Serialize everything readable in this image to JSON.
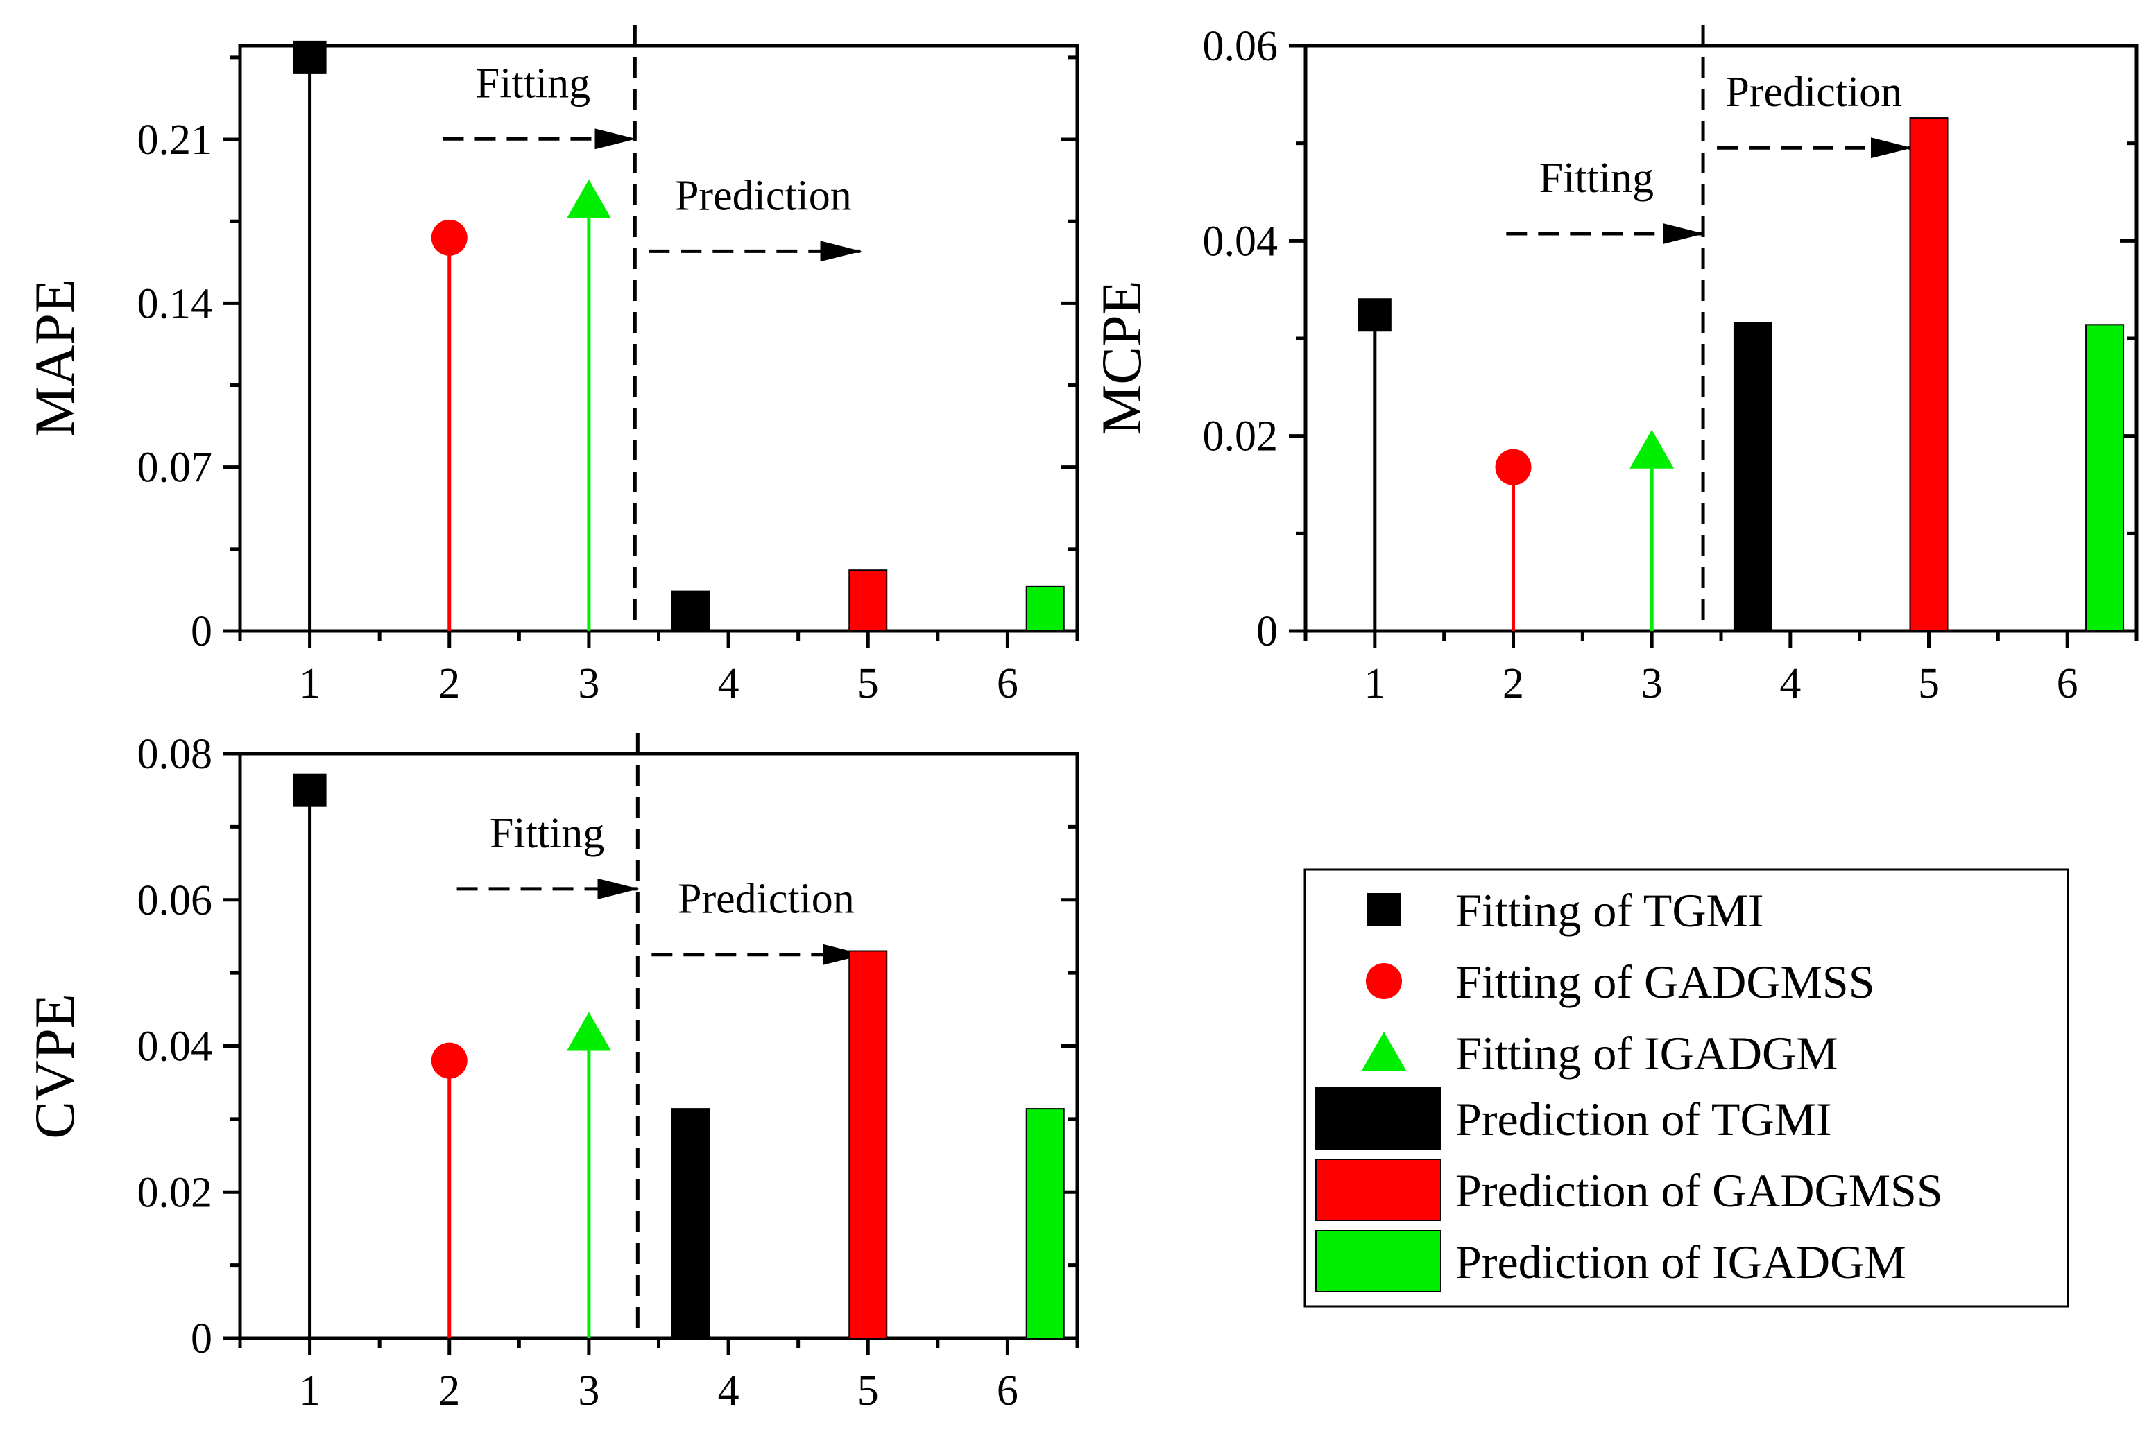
{
  "colors": {
    "TGMI": "#000000",
    "GADGMSS": "#ff0000",
    "IGADGM": "#00ee00"
  },
  "legend": {
    "items": [
      {
        "label": "Fitting of TGMI",
        "marker": "square",
        "color": "#000000"
      },
      {
        "label": "Fitting of GADGMSS",
        "marker": "circle",
        "color": "#ff0000"
      },
      {
        "label": "Fitting of IGADGM",
        "marker": "triangle",
        "color": "#00ee00"
      },
      {
        "label": "Prediction of TGMI",
        "marker": "bar",
        "color": "#000000"
      },
      {
        "label": "Prediction of GADGMSS",
        "marker": "bar",
        "color": "#ff0000"
      },
      {
        "label": "Prediction of IGADGM",
        "marker": "bar",
        "color": "#00ee00"
      }
    ]
  },
  "chart_data": [
    {
      "type": "bar",
      "ylabel": "MAPE",
      "xlabel": "",
      "xlim": [
        0.5,
        6.5
      ],
      "ylim": [
        0,
        0.25
      ],
      "yticks": [
        0,
        0.07,
        0.14,
        0.21
      ],
      "ytick_labels": [
        "0",
        "0.07",
        "0.14",
        "0.21"
      ],
      "xticks": [
        1,
        2,
        3,
        4,
        5,
        6
      ],
      "xtick_labels": [
        "1",
        "2",
        "3",
        "4",
        "5",
        "6"
      ],
      "divider_x": 3.33,
      "annotations": [
        {
          "text": "Fitting",
          "x": 2.6,
          "y": 0.228
        },
        {
          "text": "Prediction",
          "x": 4.25,
          "y": 0.18
        }
      ],
      "fitting": [
        {
          "series": "TGMI",
          "x": 1,
          "value": 0.245,
          "marker": "square"
        },
        {
          "series": "GADGMSS",
          "x": 2,
          "value": 0.168,
          "marker": "circle"
        },
        {
          "series": "IGADGM",
          "x": 3,
          "value": 0.184,
          "marker": "triangle"
        }
      ],
      "prediction": [
        {
          "series": "TGMI",
          "x": 3.73,
          "value": 0.017
        },
        {
          "series": "GADGMSS",
          "x": 5,
          "value": 0.026
        },
        {
          "series": "IGADGM",
          "x": 6.27,
          "value": 0.019
        }
      ]
    },
    {
      "type": "bar",
      "ylabel": "MCPE",
      "xlabel": "",
      "xlim": [
        0.5,
        6.5
      ],
      "ylim": [
        0,
        0.06
      ],
      "yticks": [
        0,
        0.02,
        0.04,
        0.06
      ],
      "ytick_labels": [
        "0",
        "0.02",
        "0.04",
        "0.06"
      ],
      "xticks": [
        1,
        2,
        3,
        4,
        5,
        6
      ],
      "xtick_labels": [
        "1",
        "2",
        "3",
        "4",
        "5",
        "6"
      ],
      "divider_x": 3.37,
      "annotations": [
        {
          "text": "Fitting",
          "x": 2.6,
          "y": 0.045
        },
        {
          "text": "Prediction",
          "x": 4.17,
          "y": 0.0538
        }
      ],
      "fitting": [
        {
          "series": "TGMI",
          "x": 1,
          "value": 0.0324,
          "marker": "square"
        },
        {
          "series": "GADGMSS",
          "x": 2,
          "value": 0.0168,
          "marker": "circle"
        },
        {
          "series": "IGADGM",
          "x": 3,
          "value": 0.0185,
          "marker": "triangle"
        }
      ],
      "prediction": [
        {
          "series": "TGMI",
          "x": 3.73,
          "value": 0.0316
        },
        {
          "series": "GADGMSS",
          "x": 5,
          "value": 0.0526
        },
        {
          "series": "IGADGM",
          "x": 6.27,
          "value": 0.0314
        }
      ]
    },
    {
      "type": "bar",
      "ylabel": "CVPE",
      "xlabel": "",
      "xlim": [
        0.5,
        6.5
      ],
      "ylim": [
        0,
        0.08
      ],
      "yticks": [
        0,
        0.02,
        0.04,
        0.06,
        0.08
      ],
      "ytick_labels": [
        "0",
        "0.02",
        "0.04",
        "0.06",
        "0.08"
      ],
      "xticks": [
        1,
        2,
        3,
        4,
        5,
        6
      ],
      "xtick_labels": [
        "1",
        "2",
        "3",
        "4",
        "5",
        "6"
      ],
      "divider_x": 3.35,
      "annotations": [
        {
          "text": "Fitting",
          "x": 2.7,
          "y": 0.0672
        },
        {
          "text": "Prediction",
          "x": 4.27,
          "y": 0.0582
        }
      ],
      "fitting": [
        {
          "series": "TGMI",
          "x": 1,
          "value": 0.075,
          "marker": "square"
        },
        {
          "series": "GADGMSS",
          "x": 2,
          "value": 0.038,
          "marker": "circle"
        },
        {
          "series": "IGADGM",
          "x": 3,
          "value": 0.0418,
          "marker": "triangle"
        }
      ],
      "prediction": [
        {
          "series": "TGMI",
          "x": 3.73,
          "value": 0.0314
        },
        {
          "series": "GADGMSS",
          "x": 5,
          "value": 0.053
        },
        {
          "series": "IGADGM",
          "x": 6.27,
          "value": 0.0314
        }
      ]
    }
  ]
}
